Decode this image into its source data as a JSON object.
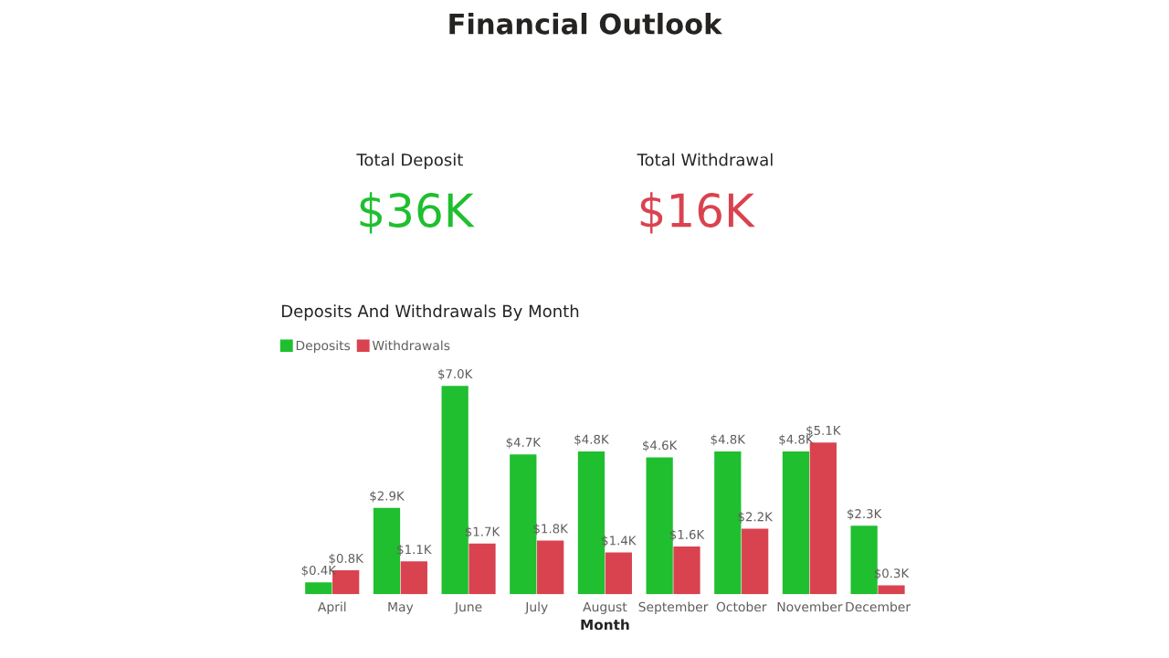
{
  "chart_data": [
    {
      "type": "other",
      "title": "Financial Outlook"
    },
    {
      "type": "other",
      "title": "Total Deposit",
      "annotations": [
        "$36K"
      ],
      "color": "#1fbf2f"
    },
    {
      "type": "other",
      "title": "Total Withdrawal",
      "annotations": [
        "$16K"
      ],
      "color": "#d9434f"
    },
    {
      "type": "bar",
      "title": "Deposits And Withdrawals By Month",
      "xlabel": "Month",
      "legend": "top left",
      "categories": [
        "April",
        "May",
        "June",
        "July",
        "August",
        "September",
        "October",
        "November",
        "December"
      ],
      "series": [
        {
          "name": "Deposits",
          "color": "#1fbf2f",
          "values": [
            0.4,
            2.9,
            7.0,
            4.7,
            4.8,
            4.6,
            4.8,
            4.8,
            2.3
          ],
          "value_labels": [
            "$0.4K",
            "$2.9K",
            "$7.0K",
            "$4.7K",
            "$4.8K",
            "$4.6K",
            "$4.8K",
            "$4.8K",
            "$2.3K"
          ]
        },
        {
          "name": "Withdrawals",
          "color": "#d9434f",
          "values": [
            0.8,
            1.1,
            1.7,
            1.8,
            1.4,
            1.6,
            2.2,
            5.1,
            0.3
          ],
          "value_labels": [
            "$0.8K",
            "$1.1K",
            "$1.7K",
            "$1.8K",
            "$1.4K",
            "$1.6K",
            "$2.2K",
            "$5.1K",
            "$0.3K"
          ]
        }
      ]
    }
  ]
}
